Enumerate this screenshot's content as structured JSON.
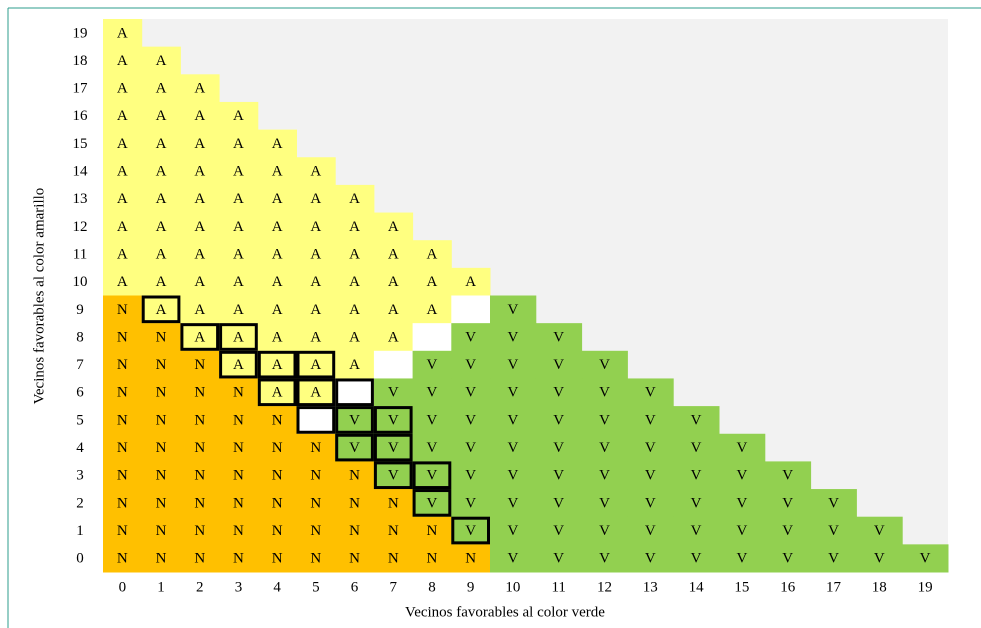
{
  "grid": {
    "x_title": "Vecinos favorables al color verde",
    "y_title": "Vecinos favorables al color amarillo",
    "column_labels": [
      0,
      1,
      2,
      3,
      4,
      5,
      6,
      7,
      8,
      9,
      10,
      11,
      12,
      13,
      14,
      15,
      16,
      17,
      18,
      19
    ],
    "row_labels": [
      19,
      18,
      17,
      16,
      15,
      14,
      13,
      12,
      11,
      10,
      9,
      8,
      7,
      6,
      5,
      4,
      3,
      2,
      1,
      0
    ],
    "colors": {
      "A": "#ffff80",
      "N": "#ffc000",
      "V": "#92d050"
    },
    "blank_color": "#ffffff",
    "rows": [
      [
        "A"
      ],
      [
        "A",
        "A"
      ],
      [
        "A",
        "A",
        "A"
      ],
      [
        "A",
        "A",
        "A",
        "A"
      ],
      [
        "A",
        "A",
        "A",
        "A",
        "A"
      ],
      [
        "A",
        "A",
        "A",
        "A",
        "A",
        "A"
      ],
      [
        "A",
        "A",
        "A",
        "A",
        "A",
        "A",
        "A"
      ],
      [
        "A",
        "A",
        "A",
        "A",
        "A",
        "A",
        "A",
        "A"
      ],
      [
        "A",
        "A",
        "A",
        "A",
        "A",
        "A",
        "A",
        "A",
        "A"
      ],
      [
        "A",
        "A",
        "A",
        "A",
        "A",
        "A",
        "A",
        "A",
        "A",
        "A"
      ],
      [
        "N",
        "A",
        "A",
        "A",
        "A",
        "A",
        "A",
        "A",
        "A",
        null,
        "V"
      ],
      [
        "N",
        "N",
        "A",
        "A",
        "A",
        "A",
        "A",
        "A",
        null,
        "V",
        "V",
        "V"
      ],
      [
        "N",
        "N",
        "N",
        "A",
        "A",
        "A",
        "A",
        null,
        "V",
        "V",
        "V",
        "V",
        "V"
      ],
      [
        "N",
        "N",
        "N",
        "N",
        "A",
        "A",
        null,
        "V",
        "V",
        "V",
        "V",
        "V",
        "V",
        "V"
      ],
      [
        "N",
        "N",
        "N",
        "N",
        "N",
        null,
        "V",
        "V",
        "V",
        "V",
        "V",
        "V",
        "V",
        "V",
        "V"
      ],
      [
        "N",
        "N",
        "N",
        "N",
        "N",
        "N",
        "V",
        "V",
        "V",
        "V",
        "V",
        "V",
        "V",
        "V",
        "V",
        "V"
      ],
      [
        "N",
        "N",
        "N",
        "N",
        "N",
        "N",
        "N",
        "V",
        "V",
        "V",
        "V",
        "V",
        "V",
        "V",
        "V",
        "V",
        "V"
      ],
      [
        "N",
        "N",
        "N",
        "N",
        "N",
        "N",
        "N",
        "N",
        "V",
        "V",
        "V",
        "V",
        "V",
        "V",
        "V",
        "V",
        "V",
        "V"
      ],
      [
        "N",
        "N",
        "N",
        "N",
        "N",
        "N",
        "N",
        "N",
        "N",
        "V",
        "V",
        "V",
        "V",
        "V",
        "V",
        "V",
        "V",
        "V",
        "V"
      ],
      [
        "N",
        "N",
        "N",
        "N",
        "N",
        "N",
        "N",
        "N",
        "N",
        "N",
        "V",
        "V",
        "V",
        "V",
        "V",
        "V",
        "V",
        "V",
        "V",
        "V"
      ]
    ]
  }
}
